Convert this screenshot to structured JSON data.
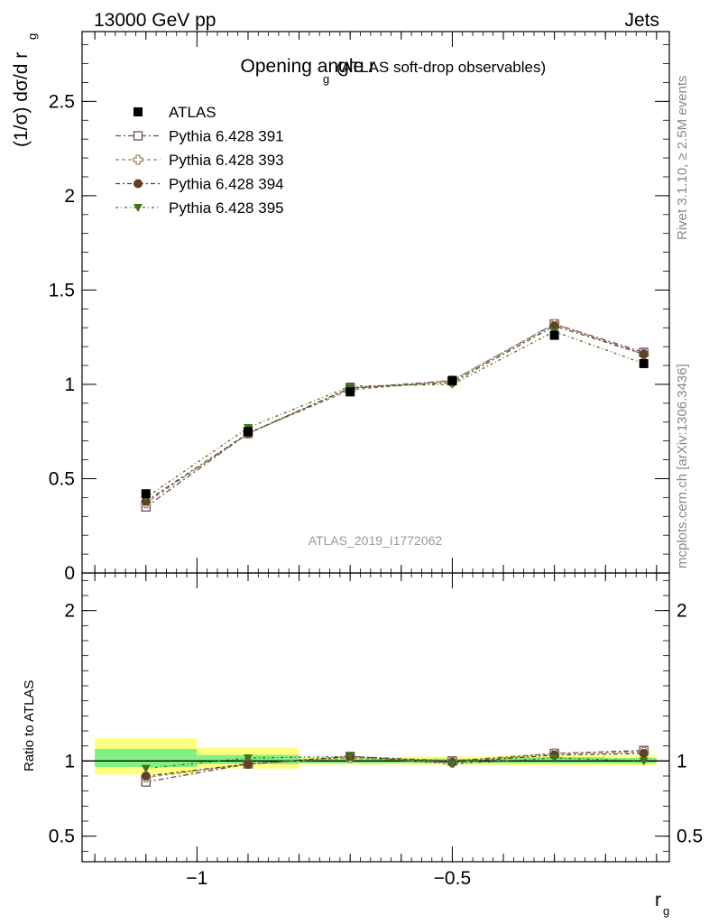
{
  "header": {
    "left": "13000 GeV pp",
    "right": "Jets"
  },
  "plot_title": {
    "main": "Opening angle r",
    "sub": "g",
    "suffix": "(ATLAS soft-drop observables)"
  },
  "side_notes": {
    "rivet": "Rivet 3.1.10, ≥ 2.5M events",
    "mcplots": "mcplots.cern.ch [arXiv:1306.3436]"
  },
  "watermark": "ATLAS_2019_I1772062",
  "axis_labels": {
    "top_ylabel_main": "(1/σ) dσ/d r",
    "top_ylabel_sub": "g",
    "ratio_ylabel": "Ratio to ATLAS",
    "xlabel_main": "r",
    "xlabel_sub": "g"
  },
  "colors": {
    "atlas": "#000000",
    "p391": "#6f4a5e",
    "p393": "#9c8460",
    "p394": "#5e4126",
    "p395": "#41731a",
    "band_yellow": "#ffff80",
    "band_green": "#80f080"
  },
  "chart_data": [
    {
      "type": "line",
      "panel": "main",
      "title": "Opening angle r_g (ATLAS soft-drop observables)",
      "xlim": [
        -1.225,
        -0.075
      ],
      "ylim": [
        0,
        2.87
      ],
      "x_ticks": [
        -1,
        -0.5
      ],
      "x_tick_labels": [
        "−1",
        "−0.5"
      ],
      "y_ticks": [
        0,
        0.5,
        1,
        1.5,
        2,
        2.5
      ],
      "y_tick_labels": [
        "0",
        "0.5",
        "1",
        "1.5",
        "2",
        "2.5"
      ],
      "legend_position": "top-left",
      "x": [
        -1.1,
        -0.9,
        -0.7,
        -0.5,
        -0.3,
        -0.125
      ],
      "series": [
        {
          "name": "ATLAS",
          "marker": "square-filled",
          "values": [
            0.42,
            0.75,
            0.96,
            1.02,
            1.26,
            1.11
          ]
        },
        {
          "name": "Pythia 6.428 391",
          "marker": "square-open",
          "values": [
            0.35,
            0.74,
            0.98,
            1.02,
            1.32,
            1.17
          ]
        },
        {
          "name": "Pythia 6.428 393",
          "marker": "cross-open",
          "values": [
            0.37,
            0.74,
            0.97,
            1.02,
            1.32,
            1.16
          ]
        },
        {
          "name": "Pythia 6.428 394",
          "marker": "circle-filled",
          "values": [
            0.38,
            0.74,
            0.98,
            1.01,
            1.31,
            1.16
          ]
        },
        {
          "name": "Pythia 6.428 395",
          "marker": "triangle-down-filled",
          "values": [
            0.4,
            0.77,
            0.99,
            1.0,
            1.28,
            1.11
          ]
        }
      ]
    },
    {
      "type": "line",
      "panel": "ratio",
      "ylabel": "Ratio to ATLAS",
      "xlabel": "r_g",
      "xlim": [
        -1.225,
        -0.075
      ],
      "ylim": [
        0.33,
        2.25
      ],
      "x_ticks": [
        -1,
        -0.5
      ],
      "x_tick_labels": [
        "−1",
        "−0.5"
      ],
      "y_ticks": [
        0.5,
        1,
        2
      ],
      "y_tick_labels": [
        "0.5",
        "1",
        "2"
      ],
      "reference_line": 1,
      "bins": [
        [
          -1.2,
          -1.0
        ],
        [
          -1.0,
          -0.8
        ],
        [
          -0.8,
          -0.6
        ],
        [
          -0.6,
          -0.4
        ],
        [
          -0.4,
          -0.2
        ],
        [
          -0.2,
          -0.1
        ]
      ],
      "uncertainty_bands": {
        "stat_green": [
          [
            0.96,
            1.08
          ],
          [
            0.98,
            1.04
          ],
          [
            0.985,
            1.015
          ],
          [
            0.985,
            1.015
          ],
          [
            0.985,
            1.025
          ],
          [
            0.985,
            1.02
          ]
        ],
        "total_yellow": [
          [
            0.91,
            1.15
          ],
          [
            0.95,
            1.09
          ],
          [
            0.975,
            1.025
          ],
          [
            0.975,
            1.03
          ],
          [
            0.97,
            1.04
          ],
          [
            0.97,
            1.04
          ]
        ]
      },
      "x": [
        -1.1,
        -0.9,
        -0.7,
        -0.5,
        -0.3,
        -0.125
      ],
      "series": [
        {
          "name": "Pythia 6.428 391",
          "marker": "square-open",
          "values": [
            0.86,
            0.98,
            1.03,
            1.0,
            1.05,
            1.07
          ]
        },
        {
          "name": "Pythia 6.428 393",
          "marker": "cross-open",
          "values": [
            0.89,
            0.98,
            1.02,
            0.99,
            1.05,
            1.06
          ]
        },
        {
          "name": "Pythia 6.428 394",
          "marker": "circle-filled",
          "values": [
            0.9,
            0.98,
            1.03,
            0.99,
            1.04,
            1.05
          ]
        },
        {
          "name": "Pythia 6.428 395",
          "marker": "triangle-down-filled",
          "values": [
            0.95,
            1.02,
            1.03,
            0.98,
            1.02,
            1.0
          ]
        }
      ]
    }
  ]
}
